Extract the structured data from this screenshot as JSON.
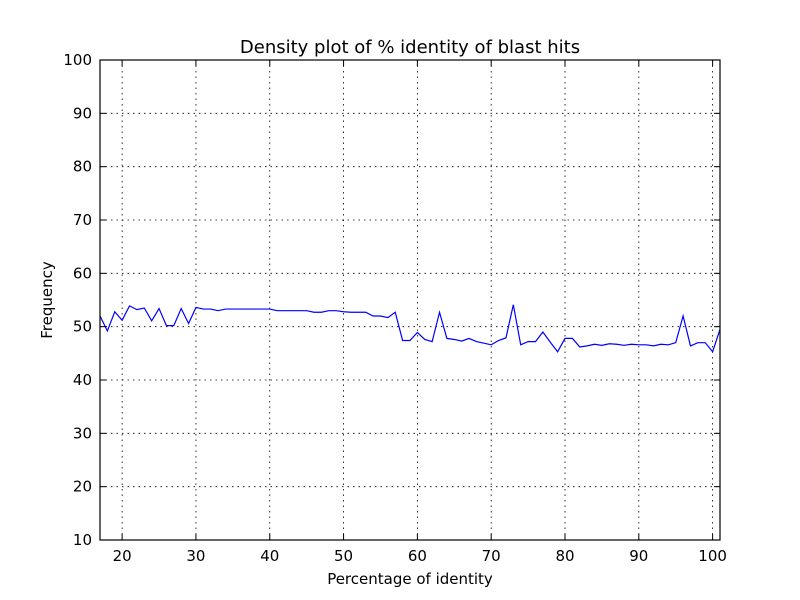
{
  "chart_data": {
    "type": "line",
    "title": "Density plot of % identity of blast hits",
    "xlabel": "Percentage of identity",
    "ylabel": "Frequency",
    "xlim": [
      17,
      101
    ],
    "ylim": [
      10,
      100
    ],
    "xticks": [
      20,
      30,
      40,
      50,
      60,
      70,
      80,
      90,
      100
    ],
    "yticks": [
      10,
      20,
      30,
      40,
      50,
      60,
      70,
      80,
      90,
      100
    ],
    "grid": true,
    "line_color": "#0000ff",
    "series": [
      {
        "x": [
          17,
          18,
          19,
          20,
          21,
          22,
          23,
          24,
          25,
          26,
          27,
          28,
          29,
          30,
          31,
          32,
          33,
          34,
          35,
          36,
          37,
          38,
          39,
          40,
          41,
          42,
          43,
          44,
          45,
          46,
          47,
          48,
          49,
          50,
          51,
          52,
          53,
          54,
          55,
          56,
          57,
          58,
          59,
          60,
          61,
          62,
          63,
          64,
          65,
          66,
          67,
          68,
          69,
          70,
          71,
          72,
          73,
          74,
          75,
          76,
          77,
          78,
          79,
          80,
          81,
          82,
          83,
          84,
          85,
          86,
          87,
          88,
          89,
          90,
          91,
          92,
          93,
          94,
          95,
          96,
          97,
          98,
          99,
          100,
          101
        ],
        "y": [
          52.0,
          49.2,
          52.8,
          51.2,
          53.9,
          53.2,
          53.5,
          51.1,
          53.4,
          50.2,
          50.2,
          53.4,
          50.6,
          53.6,
          53.3,
          53.3,
          53.0,
          53.3,
          53.3,
          53.3,
          53.3,
          53.3,
          53.3,
          53.3,
          53.0,
          53.0,
          53.0,
          53.0,
          53.0,
          52.7,
          52.7,
          53.0,
          53.0,
          52.8,
          52.7,
          52.7,
          52.7,
          52.0,
          52.0,
          51.7,
          52.7,
          47.4,
          47.4,
          48.9,
          47.6,
          47.2,
          52.7,
          47.8,
          47.6,
          47.3,
          47.8,
          47.2,
          46.9,
          46.6,
          47.4,
          47.9,
          54.1,
          46.6,
          47.2,
          47.2,
          49.0,
          47.1,
          45.3,
          47.8,
          47.8,
          46.2,
          46.4,
          46.7,
          46.5,
          46.8,
          46.7,
          46.5,
          46.7,
          46.6,
          46.6,
          46.4,
          46.7,
          46.6,
          47.0,
          52.0,
          46.4,
          47.0,
          47.0,
          45.3,
          49.5
        ]
      }
    ]
  }
}
